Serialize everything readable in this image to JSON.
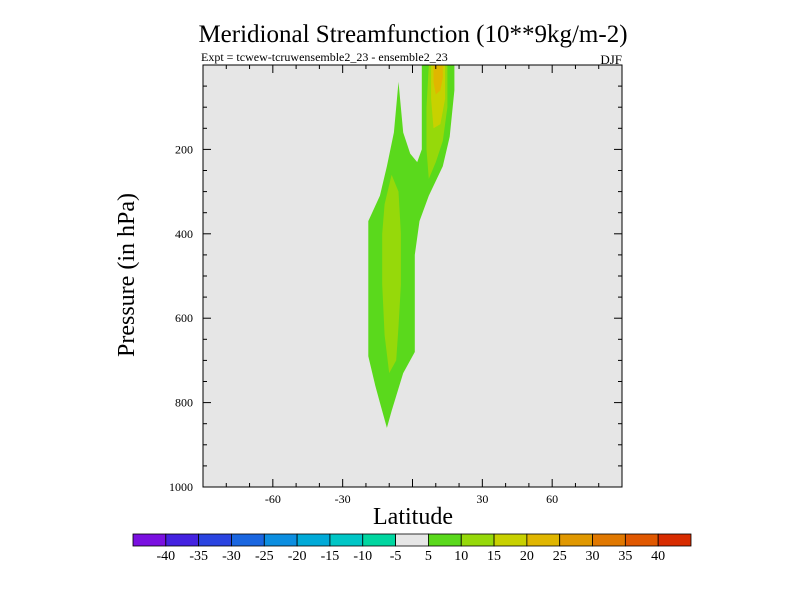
{
  "chart_data": {
    "type": "contour",
    "title": "Meridional Streamfunction (10**9kg/m-2)",
    "subtitle_left": "Expt = tcwew-tcruwensemble2_23 - ensemble2_23",
    "subtitle_right": "DJF",
    "xlabel": "Latitude",
    "ylabel": "Pressure (in hPa)",
    "xlim": [
      -90,
      90
    ],
    "ylim": [
      1000,
      0
    ],
    "x_ticks": [
      -60,
      -30,
      0,
      30,
      60
    ],
    "x_tick_labels": [
      "-60",
      "-30",
      "",
      "30",
      "60"
    ],
    "y_ticks": [
      200,
      400,
      600,
      800,
      1000
    ],
    "y_tick_labels": [
      "200",
      "400",
      "600",
      "800",
      "1000"
    ],
    "background_color": "#e6e6e6",
    "contour_levels": [
      -40,
      -35,
      -30,
      -25,
      -20,
      -15,
      -10,
      -5,
      5,
      10,
      15,
      20,
      25,
      30,
      35,
      40
    ],
    "colorbar_labels": [
      "-40",
      "-35",
      "-30",
      "-25",
      "-20",
      "-15",
      "-10",
      "-5",
      "5",
      "10",
      "15",
      "20",
      "25",
      "30",
      "35",
      "40"
    ],
    "colorbar_colors": [
      "#7a10e0",
      "#4422e0",
      "#2a44e0",
      "#1a66e0",
      "#0c8ee0",
      "#00aad8",
      "#00c6c6",
      "#00d6a0",
      "#e6e6e6",
      "#5ad91c",
      "#96d90a",
      "#c8d100",
      "#e0b600",
      "#e09800",
      "#e07800",
      "#e05800",
      "#d82c00"
    ],
    "regions": [
      {
        "level": "5 to 10",
        "color": "#5ad91c",
        "polygon": [
          [
            -6,
            40
          ],
          [
            -4,
            160
          ],
          [
            -1,
            210
          ],
          [
            2,
            230
          ],
          [
            4,
            200
          ],
          [
            4,
            0
          ],
          [
            18,
            0
          ],
          [
            18,
            60
          ],
          [
            16,
            170
          ],
          [
            13,
            240
          ],
          [
            7,
            310
          ],
          [
            3,
            370
          ],
          [
            1,
            450
          ],
          [
            1,
            540
          ],
          [
            1,
            680
          ],
          [
            -4,
            730
          ],
          [
            -9,
            820
          ],
          [
            -11,
            860
          ],
          [
            -14,
            800
          ],
          [
            -16,
            760
          ],
          [
            -19,
            690
          ],
          [
            -19,
            560
          ],
          [
            -19,
            440
          ],
          [
            -19,
            370
          ],
          [
            -14,
            310
          ],
          [
            -11,
            240
          ],
          [
            -8,
            160
          ]
        ]
      },
      {
        "level": "10 to 15",
        "color": "#96d90a",
        "polygon": [
          [
            -9,
            260
          ],
          [
            -6,
            300
          ],
          [
            -5,
            400
          ],
          [
            -5,
            520
          ],
          [
            -6,
            620
          ],
          [
            -7,
            700
          ],
          [
            -10,
            730
          ],
          [
            -12,
            640
          ],
          [
            -13,
            520
          ],
          [
            -13,
            400
          ],
          [
            -12,
            330
          ]
        ]
      },
      {
        "level": "10 to 15",
        "color": "#96d90a",
        "polygon": [
          [
            7,
            0
          ],
          [
            15,
            0
          ],
          [
            15,
            100
          ],
          [
            13,
            180
          ],
          [
            10,
            230
          ],
          [
            7,
            270
          ],
          [
            6,
            200
          ],
          [
            6,
            100
          ]
        ]
      },
      {
        "level": "15 to 20",
        "color": "#c8d100",
        "polygon": [
          [
            8,
            0
          ],
          [
            14,
            0
          ],
          [
            14,
            80
          ],
          [
            12,
            140
          ],
          [
            9,
            150
          ],
          [
            8,
            80
          ]
        ]
      },
      {
        "level": "20 to 25",
        "color": "#e0b600",
        "polygon": [
          [
            9,
            0
          ],
          [
            13,
            0
          ],
          [
            13,
            30
          ],
          [
            12,
            60
          ],
          [
            10,
            70
          ],
          [
            9,
            40
          ]
        ]
      }
    ]
  }
}
